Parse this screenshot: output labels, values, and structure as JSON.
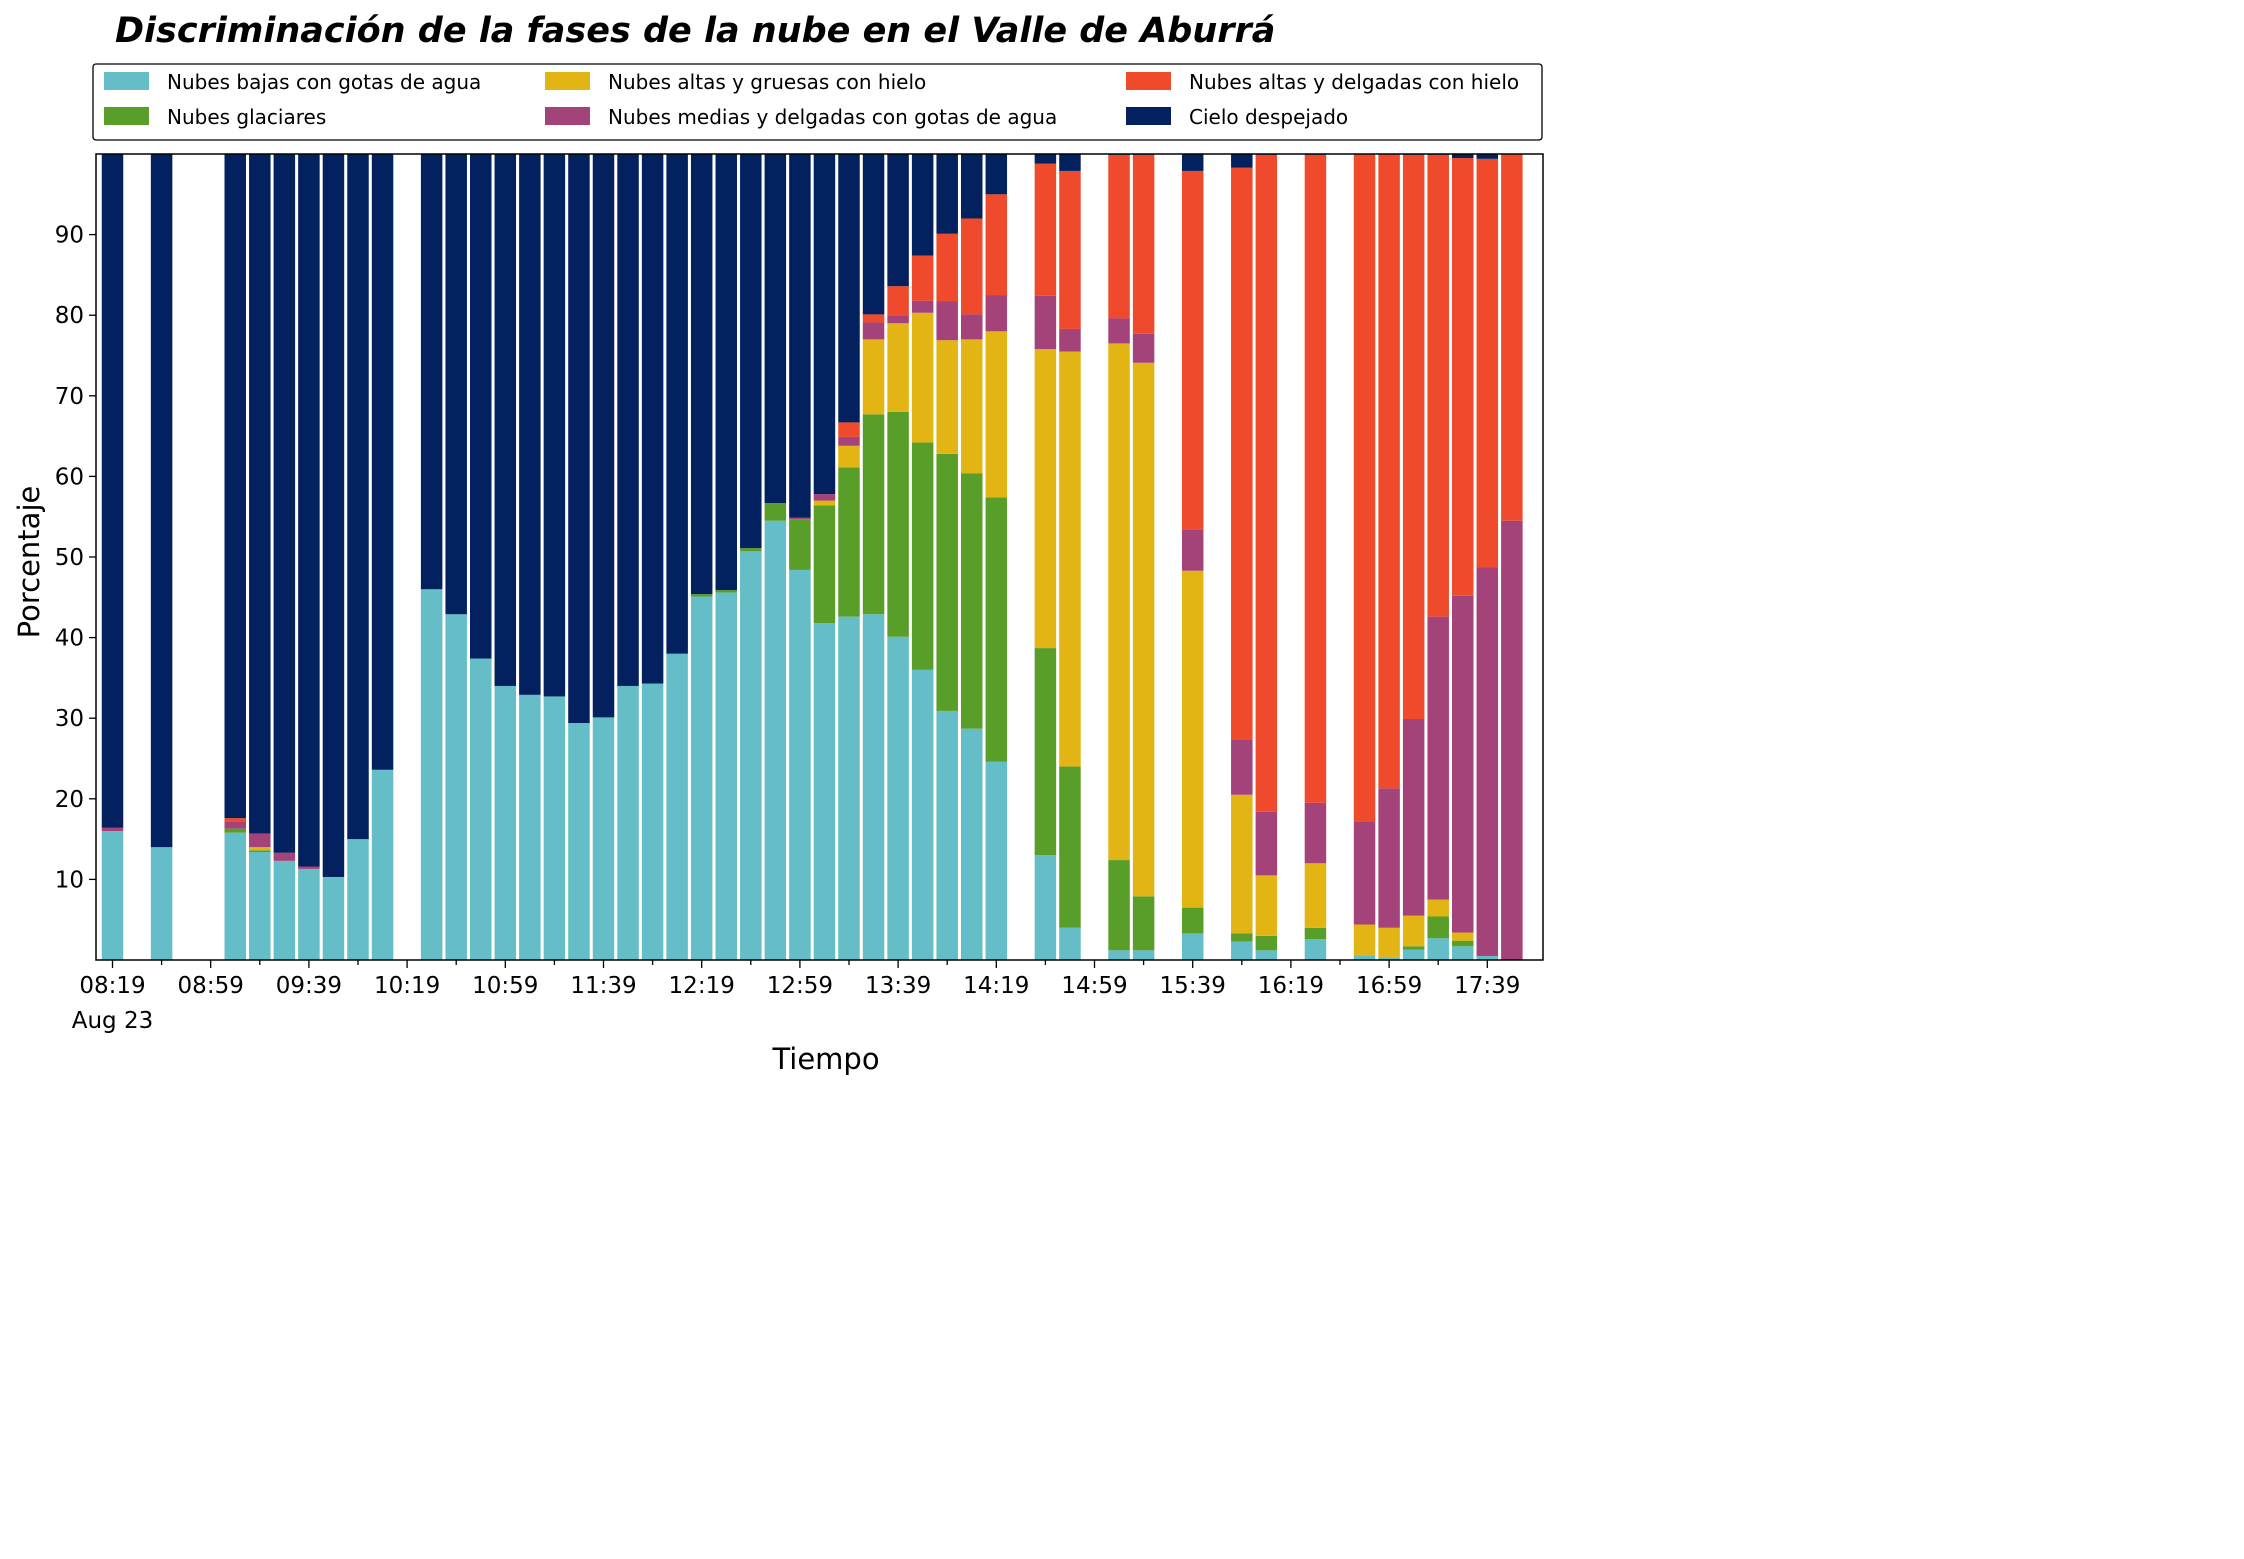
{
  "chart_data": {
    "type": "bar",
    "stacked": true,
    "title": "Discriminación de la fases de la nube en el Valle de Aburrá",
    "xlabel": "Tiempo",
    "ylabel": "Porcentaje",
    "ylim": [
      0,
      100
    ],
    "yticks": [
      10,
      20,
      30,
      40,
      50,
      60,
      70,
      80,
      90
    ],
    "grid": false,
    "legend_position": "top",
    "x_start_time": "08:19",
    "x_interval_minutes": 10,
    "x_tick_labels": [
      "08:19",
      "08:59",
      "09:39",
      "10:19",
      "10:59",
      "11:39",
      "12:19",
      "12:59",
      "13:39",
      "14:19",
      "14:59",
      "15:39",
      "16:19",
      "16:59",
      "17:39"
    ],
    "x_date_label": "Aug 23",
    "series": [
      {
        "name": "Nubes bajas con gotas de agua",
        "color": "#65bdc8",
        "values": [
          16,
          0,
          14,
          0,
          0,
          15.8,
          13.4,
          12.3,
          11.3,
          10.3,
          15,
          23.6,
          0,
          46,
          42.9,
          37.4,
          34,
          32.9,
          32.7,
          29.4,
          30.1,
          34,
          34.3,
          38,
          45.1,
          45.6,
          50.7,
          54.5,
          48.4,
          41.8,
          42.6,
          42.9,
          40.1,
          36,
          30.9,
          28.7,
          24.6,
          0,
          13,
          4,
          0,
          1.2,
          1.2,
          0,
          3.3,
          0,
          2.3,
          1.2,
          0,
          2.6,
          0,
          0.6,
          0.3,
          1.3,
          2.7,
          1.7,
          0.5,
          0
        ]
      },
      {
        "name": "Nubes glaciares",
        "color": "#5a9e2a",
        "values": [
          0,
          0,
          0,
          0,
          0,
          0.5,
          0.2,
          0,
          0,
          0,
          0,
          0,
          0,
          0,
          0,
          0,
          0,
          0,
          0,
          0,
          0,
          0,
          0,
          0,
          0.3,
          0.3,
          0.4,
          2.2,
          6.3,
          14.6,
          18.5,
          24.8,
          27.9,
          28.2,
          31.9,
          31.7,
          32.8,
          0,
          25.7,
          20,
          0,
          11.2,
          6.7,
          0,
          3.2,
          0,
          1,
          1.8,
          0,
          1.4,
          0,
          0,
          0,
          0.4,
          2.7,
          0.7,
          0,
          0
        ]
      },
      {
        "name": "Nubes altas y gruesas con hielo",
        "color": "#e3b514",
        "values": [
          0,
          0,
          0,
          0,
          0,
          0,
          0.4,
          0,
          0,
          0,
          0,
          0,
          0,
          0,
          0,
          0,
          0,
          0,
          0,
          0,
          0,
          0,
          0,
          0,
          0,
          0,
          0,
          0,
          0,
          0.6,
          2.7,
          9.3,
          11,
          16.1,
          14.1,
          16.6,
          20.6,
          0,
          37.1,
          51.5,
          0,
          64.1,
          66.2,
          0,
          41.8,
          0,
          17.2,
          7.5,
          0,
          8,
          0,
          3.8,
          3.7,
          3.8,
          2.1,
          1,
          0,
          0
        ]
      },
      {
        "name": "Nubes medias y delgadas con gotas de agua",
        "color": "#a4427a",
        "values": [
          0.4,
          0,
          0,
          0,
          0,
          0.9,
          1.7,
          1,
          0.3,
          0,
          0,
          0,
          0,
          0,
          0,
          0,
          0,
          0,
          0,
          0,
          0,
          0,
          0,
          0,
          0,
          0,
          0,
          0,
          0.2,
          0.8,
          1.1,
          2.1,
          0.9,
          1.5,
          4.8,
          3.1,
          4.5,
          0,
          6.6,
          2.8,
          0,
          3.1,
          3.6,
          0,
          5.1,
          0,
          6.9,
          7.9,
          0,
          7.5,
          0,
          12.8,
          17.3,
          24.4,
          35.1,
          41.8,
          48.2,
          54.5
        ]
      },
      {
        "name": "Nubes altas y delgadas con hielo",
        "color": "#ee4a2b",
        "values": [
          0,
          0,
          0,
          0,
          0,
          0.4,
          0,
          0,
          0,
          0,
          0,
          0,
          0,
          0,
          0,
          0,
          0,
          0,
          0,
          0,
          0,
          0,
          0,
          0,
          0,
          0,
          0,
          0,
          0,
          0,
          1.8,
          1,
          3.7,
          5.6,
          8.4,
          11.9,
          12.5,
          0,
          16.4,
          19.6,
          0,
          20.3,
          22.2,
          0,
          44.5,
          0,
          70.9,
          81.5,
          0,
          80.4,
          0,
          82.8,
          78.7,
          70,
          57.3,
          54.3,
          50.7,
          45.5
        ]
      },
      {
        "name": "Cielo despejado",
        "color": "#04215f",
        "values": [
          83.6,
          0,
          86,
          0,
          0,
          82.4,
          84.3,
          86.7,
          88.4,
          89.7,
          85,
          76.4,
          0,
          54,
          57.1,
          62.6,
          66,
          67.1,
          67.3,
          70.6,
          69.9,
          66,
          65.7,
          62,
          54.6,
          54.1,
          48.9,
          43.3,
          45.1,
          42.2,
          33.3,
          19.9,
          16.4,
          12.6,
          9.9,
          8,
          5,
          0,
          1.2,
          2.1,
          0,
          0.1,
          0.1,
          0,
          2.1,
          0,
          1.7,
          0.1,
          0,
          0.1,
          0,
          0,
          0,
          0.1,
          0.1,
          0.5,
          0.6,
          0
        ]
      }
    ]
  }
}
